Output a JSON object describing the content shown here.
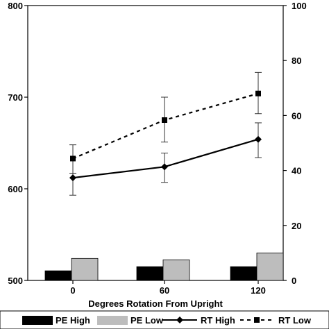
{
  "chart_data": {
    "type": "bar+line",
    "xlabel": "Degrees Rotation From Upright",
    "categories": [
      "0",
      "60",
      "120"
    ],
    "left_axis": {
      "range": [
        500,
        800
      ],
      "ticks": [
        "500",
        "600",
        "700",
        "800"
      ]
    },
    "right_axis": {
      "range": [
        0,
        100
      ],
      "ticks": [
        "0",
        "20",
        "40",
        "60",
        "80",
        "100"
      ]
    },
    "bars": [
      {
        "name": "PE High",
        "axis": "right",
        "color": "#000000",
        "values": [
          3.5,
          5,
          5
        ]
      },
      {
        "name": "PE Low",
        "axis": "right",
        "color": "#bdbdbd",
        "values": [
          8,
          7.5,
          10
        ]
      }
    ],
    "lines": [
      {
        "name": "RT High",
        "axis": "left",
        "style": "solid",
        "marker": "diamond",
        "values": [
          612,
          624,
          654
        ],
        "err_low": [
          593,
          607,
          634
        ],
        "err_high": [
          617,
          639,
          672
        ]
      },
      {
        "name": "RT Low",
        "axis": "left",
        "style": "dashed",
        "marker": "square",
        "values": [
          633,
          675,
          704
        ],
        "err_low": [
          617,
          651,
          682
        ],
        "err_high": [
          648,
          700,
          727
        ]
      }
    ],
    "legend": [
      "PE High",
      "PE Low",
      "RT High",
      "RT Low"
    ],
    "legend_position": "bottom"
  }
}
